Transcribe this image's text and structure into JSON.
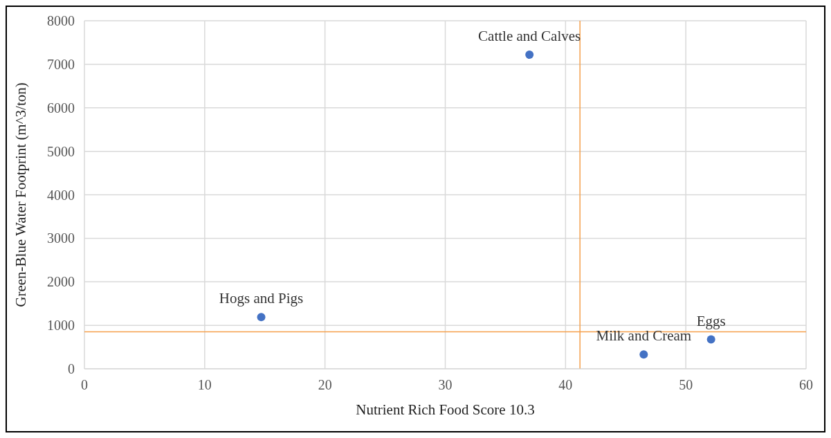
{
  "chart_data": {
    "type": "scatter",
    "xlabel": "Nutrient Rich Food Score 10.3",
    "ylabel": "Green-Blue Water Footprint (m^3/ton)",
    "x": [
      37.0,
      14.7,
      46.5,
      52.1
    ],
    "values": [
      7220,
      1190,
      330,
      675
    ],
    "color": "#4472c4",
    "marker": "circle",
    "xlim": [
      0,
      60
    ],
    "xticks": [
      0,
      10,
      20,
      30,
      40,
      50,
      60
    ],
    "ylim": [
      0,
      8000
    ],
    "yticks": [
      0,
      1000,
      2000,
      3000,
      4000,
      5000,
      6000,
      7000,
      8000
    ],
    "grid": true,
    "legend": false,
    "ref_lines": [
      {
        "axis": "x",
        "value": 41.2,
        "color": "#f5a04b"
      },
      {
        "axis": "y",
        "value": 850,
        "color": "#f5a04b"
      }
    ],
    "annotations": [
      {
        "text": "Cattle and Calves",
        "x": 37.0,
        "y": 7220
      },
      {
        "text": "Hogs and Pigs",
        "x": 14.7,
        "y": 1190
      },
      {
        "text": "Milk and Cream",
        "x": 46.5,
        "y": 330
      },
      {
        "text": "Eggs",
        "x": 52.1,
        "y": 675
      }
    ]
  }
}
